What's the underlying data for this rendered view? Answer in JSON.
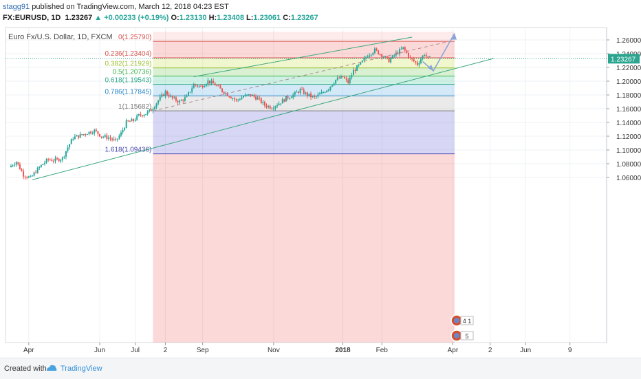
{
  "header": {
    "author": "stagg91",
    "published": " published on TradingView.com, March 12, 2018 04:23 EST",
    "symbol": "FX:EURUSD, 1D",
    "last": "1.23267",
    "change": "+0.00233 (+0.19%)",
    "o_label": "O:",
    "o_value": "1.23130",
    "h_label": "H:",
    "h_value": "1.23408",
    "l_label": "L:",
    "l_value": "1.23061",
    "c_label": "C:",
    "c_value": "1.23267"
  },
  "footer": {
    "created": "Created with",
    "brand": "TradingView"
  },
  "colors": {
    "up": "#26a69a",
    "down": "#ef5350",
    "channel": "#3aa77c",
    "arrow": "#8aa4d8",
    "price_label_bg": "#2ba590"
  },
  "chart_data": {
    "type": "candlestick",
    "title": "Euro Fx/U.S. Dollar, 1D, FXCM",
    "ylim": [
      1.048,
      1.27
    ],
    "x_range": [
      0,
      305
    ],
    "current_price": 1.23267,
    "current_price_label": "1.23267",
    "y_ticks": [
      {
        "v": 1.26,
        "label": "1.26000"
      },
      {
        "v": 1.24,
        "label": "1.24000"
      },
      {
        "v": 1.22,
        "label": "1.22000"
      },
      {
        "v": 1.2,
        "label": "1.20000"
      },
      {
        "v": 1.18,
        "label": "1.18000"
      },
      {
        "v": 1.16,
        "label": "1.16000"
      },
      {
        "v": 1.14,
        "label": "1.14000"
      },
      {
        "v": 1.12,
        "label": "1.12000"
      },
      {
        "v": 1.1,
        "label": "1.10000"
      },
      {
        "v": 1.08,
        "label": "1.08000"
      },
      {
        "v": 1.06,
        "label": "1.06000"
      }
    ],
    "x_ticks": [
      {
        "d": 10,
        "label": "Apr"
      },
      {
        "d": 50,
        "label": "Jun"
      },
      {
        "d": 70,
        "label": "Jul"
      },
      {
        "d": 87,
        "label": "2"
      },
      {
        "d": 108,
        "label": "Sep"
      },
      {
        "d": 148,
        "label": "Nov"
      },
      {
        "d": 187,
        "label": "2018"
      },
      {
        "d": 209,
        "label": "Feb"
      },
      {
        "d": 249,
        "label": "Apr"
      },
      {
        "d": 270,
        "label": "2"
      },
      {
        "d": 290,
        "label": "Jun"
      },
      {
        "d": 315,
        "label": "9"
      }
    ],
    "fibonacci": {
      "x_start": 80,
      "x_end": 250,
      "levels": [
        {
          "ratio": 0,
          "label": "0(1.25790)",
          "price": 1.2579,
          "color": "#d9534f"
        },
        {
          "ratio": 0.236,
          "label": "0.236(1.23404)",
          "price": 1.23404,
          "color": "#d9534f"
        },
        {
          "ratio": 0.382,
          "label": "0.382(1.21929)",
          "price": 1.21929,
          "color": "#9fc236"
        },
        {
          "ratio": 0.5,
          "label": "0.5(1.20736)",
          "price": 1.20736,
          "color": "#3db54a"
        },
        {
          "ratio": 0.618,
          "label": "0.618(1.19543)",
          "price": 1.19543,
          "color": "#2aa886"
        },
        {
          "ratio": 0.786,
          "label": "0.786(1.17845)",
          "price": 1.17845,
          "color": "#2a87c9"
        },
        {
          "ratio": 1,
          "label": "1(1.15682)",
          "price": 1.15682,
          "color": "#777777"
        },
        {
          "ratio": 1.618,
          "label": "1.618(1.09436)",
          "price": 1.09436,
          "color": "#4b4ab0"
        }
      ]
    },
    "trend_lines": [
      {
        "x1": 12,
        "y1": 1.0566,
        "x2": 272,
        "y2": 1.233,
        "kind": "channel-lower"
      },
      {
        "x1": 103,
        "y1": 1.2065,
        "x2": 226,
        "y2": 1.264,
        "kind": "channel-upper"
      },
      {
        "x1": 80,
        "y1": 1.1568,
        "x2": 247,
        "y2": 1.2579,
        "kind": "dashed-mid"
      }
    ],
    "projection_arrow": [
      {
        "x": 232,
        "y": 1.2285
      },
      {
        "x": 238,
        "y": 1.215
      },
      {
        "x": 250,
        "y": 1.2695
      }
    ],
    "event_badges": [
      {
        "label": "4 1"
      },
      {
        "label": "5"
      }
    ],
    "anchors": [
      [
        0,
        1.075
      ],
      [
        4,
        1.083
      ],
      [
        8,
        1.064
      ],
      [
        12,
        1.059
      ],
      [
        15,
        1.069
      ],
      [
        19,
        1.08
      ],
      [
        22,
        1.086
      ],
      [
        26,
        1.085
      ],
      [
        30,
        1.088
      ],
      [
        33,
        1.104
      ],
      [
        36,
        1.118
      ],
      [
        40,
        1.121
      ],
      [
        44,
        1.125
      ],
      [
        48,
        1.128
      ],
      [
        52,
        1.12
      ],
      [
        56,
        1.118
      ],
      [
        60,
        1.113
      ],
      [
        63,
        1.124
      ],
      [
        66,
        1.14
      ],
      [
        70,
        1.143
      ],
      [
        73,
        1.15
      ],
      [
        77,
        1.153
      ],
      [
        80,
        1.158
      ],
      [
        84,
        1.172
      ],
      [
        88,
        1.184
      ],
      [
        92,
        1.175
      ],
      [
        96,
        1.17
      ],
      [
        100,
        1.177
      ],
      [
        104,
        1.195
      ],
      [
        108,
        1.192
      ],
      [
        112,
        1.2
      ],
      [
        116,
        1.195
      ],
      [
        120,
        1.186
      ],
      [
        124,
        1.179
      ],
      [
        128,
        1.172
      ],
      [
        132,
        1.178
      ],
      [
        136,
        1.18
      ],
      [
        140,
        1.175
      ],
      [
        144,
        1.165
      ],
      [
        148,
        1.162
      ],
      [
        152,
        1.168
      ],
      [
        156,
        1.175
      ],
      [
        160,
        1.18
      ],
      [
        164,
        1.187
      ],
      [
        168,
        1.18
      ],
      [
        172,
        1.176
      ],
      [
        176,
        1.182
      ],
      [
        180,
        1.19
      ],
      [
        184,
        1.202
      ],
      [
        188,
        1.206
      ],
      [
        191,
        1.198
      ],
      [
        194,
        1.215
      ],
      [
        198,
        1.225
      ],
      [
        202,
        1.238
      ],
      [
        206,
        1.245
      ],
      [
        210,
        1.238
      ],
      [
        214,
        1.23
      ],
      [
        218,
        1.24
      ],
      [
        222,
        1.248
      ],
      [
        226,
        1.233
      ],
      [
        230,
        1.225
      ],
      [
        234,
        1.24
      ],
      [
        236,
        1.233
      ]
    ]
  }
}
